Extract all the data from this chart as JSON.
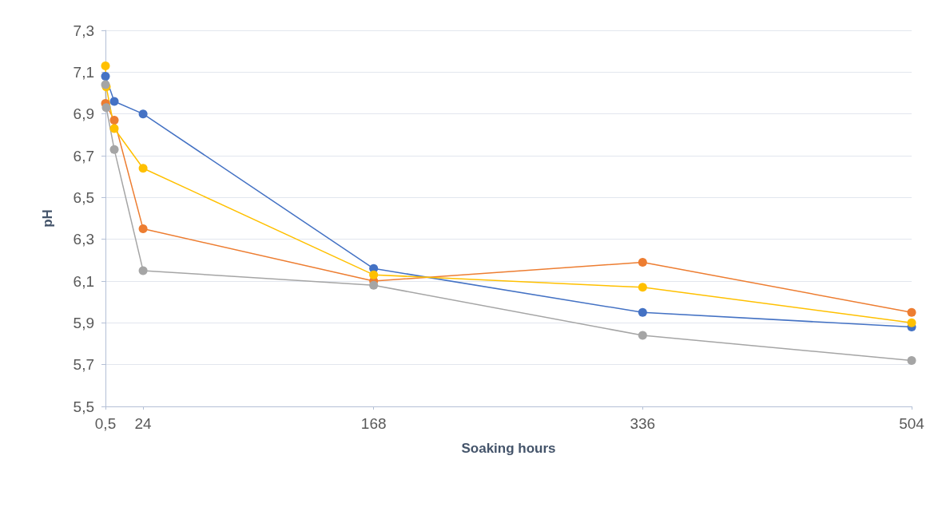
{
  "chart_data": {
    "type": "line",
    "xlabel": "Soaking hours",
    "ylabel": "pH",
    "x": [
      0.5,
      1,
      6,
      24,
      168,
      336,
      504
    ],
    "series": [
      {
        "color": "#4472c4",
        "values": [
          7.08,
          null,
          6.96,
          6.9,
          6.16,
          5.95,
          5.88
        ]
      },
      {
        "color": "#ed7d31",
        "values": [
          6.95,
          null,
          6.87,
          6.35,
          6.1,
          6.19,
          5.95
        ]
      },
      {
        "color": "#ffc000",
        "values": [
          7.13,
          7.03,
          6.83,
          6.64,
          6.13,
          6.07,
          5.9
        ]
      },
      {
        "color": "#a5a5a5",
        "values": [
          7.04,
          6.93,
          6.73,
          6.15,
          6.08,
          5.84,
          5.72
        ]
      }
    ],
    "xlim": [
      0.5,
      504
    ],
    "xticks": [
      {
        "value": 0.5,
        "label": "0,5"
      },
      24,
      168,
      336,
      504
    ],
    "ylim": [
      5.5,
      7.3
    ],
    "yticks": [
      {
        "value": 5.5,
        "label": "5,5"
      },
      {
        "value": 5.7,
        "label": "5,7"
      },
      {
        "value": 5.9,
        "label": "5,9"
      },
      {
        "value": 6.1,
        "label": "6,1"
      },
      {
        "value": 6.3,
        "label": "6,3"
      },
      {
        "value": 6.5,
        "label": "6,5"
      },
      {
        "value": 6.7,
        "label": "6,7"
      },
      {
        "value": 6.9,
        "label": "6,9"
      },
      {
        "value": 7.1,
        "label": "7,1"
      },
      {
        "value": 7.3,
        "label": "7,3"
      }
    ],
    "grid": "y",
    "marker": "circle",
    "line_style": "solid"
  }
}
